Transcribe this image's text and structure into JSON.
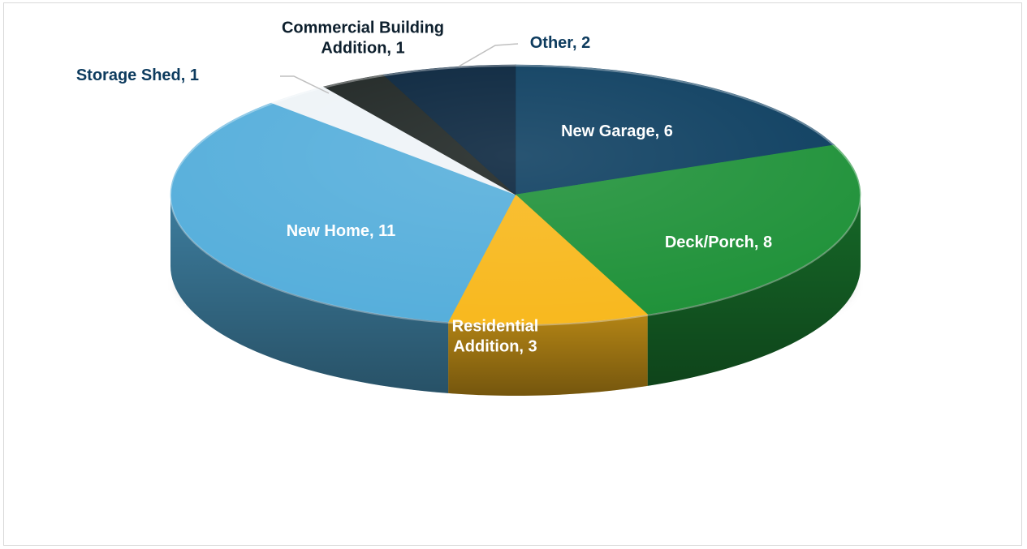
{
  "chart_data": {
    "type": "pie",
    "title": "",
    "series": [
      {
        "slices": [
          {
            "label": "New Garage",
            "value": 6,
            "color": "#0b3d5f",
            "label_color": "#ffffff",
            "display": [
              "New Garage, 6"
            ]
          },
          {
            "label": "Deck/Porch",
            "value": 8,
            "color": "#1e9138",
            "label_color": "#ffffff",
            "display": [
              "Deck/Porch, 8"
            ]
          },
          {
            "label": "Residential Addition",
            "value": 3,
            "color": "#f8b81d",
            "label_color": "#ffffff",
            "display": [
              "Residential",
              "Addition, 3"
            ]
          },
          {
            "label": "New Home",
            "value": 11,
            "color": "#55aedb",
            "label_color": "#ffffff",
            "display": [
              "New Home, 11"
            ]
          },
          {
            "label": "Storage Shed",
            "value": 1,
            "color": "#eef3f7",
            "label_color": "#0d3b5e",
            "display": [
              "Storage Shed, 1"
            ]
          },
          {
            "label": "Commercial Building Addition",
            "value": 1,
            "color": "#1c2321",
            "label_color": "#0d1f2d",
            "display": [
              "Commercial Building",
              "Addition, 1"
            ]
          },
          {
            "label": "Other",
            "value": 2,
            "color": "#06223b",
            "label_color": "#0d3b5e",
            "display": [
              "Other, 2"
            ]
          }
        ]
      }
    ],
    "start_angle": "12 o'clock",
    "direction": "clockwise",
    "style": "3D",
    "legend": "none"
  }
}
